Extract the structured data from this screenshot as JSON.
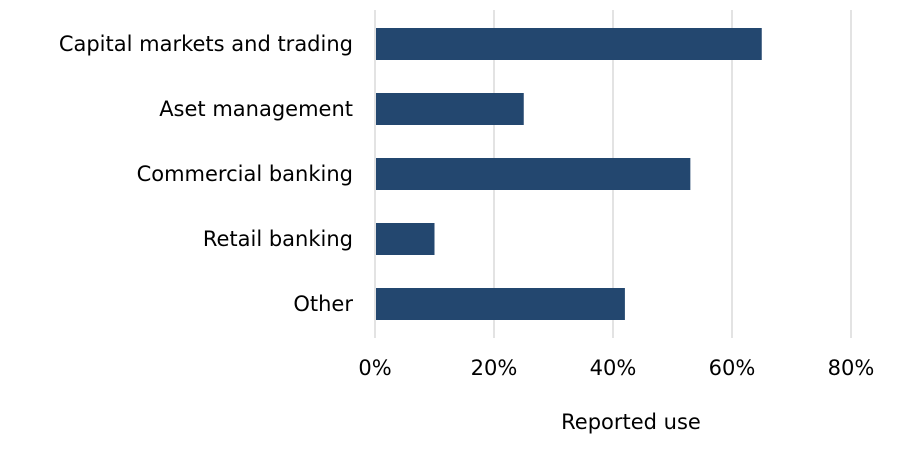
{
  "chart_data": {
    "type": "bar",
    "orientation": "horizontal",
    "categories": [
      "Capital markets and trading",
      "Aset management",
      "Commercial banking",
      "Retail banking",
      "Other"
    ],
    "values": [
      0.65,
      0.25,
      0.53,
      0.1,
      0.42
    ],
    "xlabel": "Reported use",
    "ylabel": "",
    "xlim": [
      0,
      0.8
    ],
    "xticks": [
      "0%",
      "20%",
      "40%",
      "60%",
      "80%"
    ],
    "grid": "vertical",
    "bar_color": "#23476F"
  }
}
